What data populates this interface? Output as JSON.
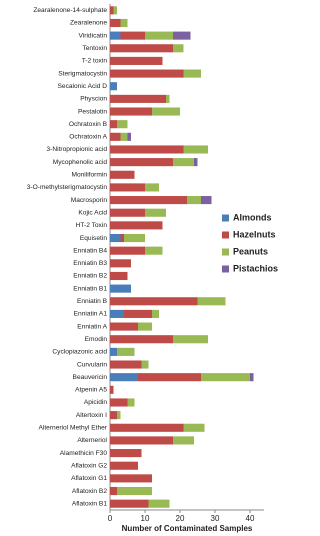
{
  "chart_data": {
    "type": "bar",
    "orientation": "horizontal",
    "stacked": true,
    "x_label": "Number of Contaminated Samples",
    "categories": [
      "Zearalenone-14-sulphate",
      "Zearalenone",
      "Viridicatin",
      "Tentoxin",
      "T-2 toxin",
      "Sterigmatocystin",
      "Secalonic Acid D",
      "Physcion",
      "Pestalotin",
      "Ochratoxin B",
      "Ochratoxin A",
      "3-Nitropropionic acid",
      "Mycophenolic acid",
      "Moniliformin",
      "3-O-methylsterigmatocystin",
      "Macrosporin",
      "Kojic Acid",
      "HT-2 Toxin",
      "Equisetin",
      "Enniatin B4",
      "Enniatin B3",
      "Enniatin B2",
      "Enniatin B1",
      "Enniatin B",
      "Enniatin A1",
      "Enniatin A",
      "Emodin",
      "Cyclopiazonic acid",
      "Curvularin",
      "Beauvericin",
      "Atpenin A5",
      "Apicidin",
      "Altertoxin I",
      "Alterneriol Methyl Ether",
      "Alterneriol",
      "Alamethicin F30",
      "Aflatoxin G2",
      "Aflatoxin G1",
      "Aflatoxin B2",
      "Aflatoxin B1"
    ],
    "series": [
      {
        "name": "Almonds",
        "color": "#4a7ebb",
        "values": [
          0,
          0,
          3,
          0,
          0,
          0,
          2,
          0,
          0,
          0,
          0,
          0,
          0,
          0,
          0,
          0,
          0,
          0,
          3,
          0,
          0,
          0,
          6,
          0,
          4,
          0,
          0,
          2,
          0,
          8,
          0,
          0,
          0,
          0,
          0,
          0,
          0,
          0,
          0,
          0
        ]
      },
      {
        "name": "Hazelnuts",
        "color": "#be4b48",
        "values": [
          1,
          3,
          7,
          18,
          15,
          21,
          0,
          16,
          12,
          2,
          3,
          21,
          18,
          7,
          10,
          22,
          10,
          15,
          1,
          10,
          6,
          5,
          0,
          25,
          8,
          8,
          18,
          0,
          9,
          18,
          1,
          5,
          2,
          21,
          18,
          9,
          8,
          12,
          2,
          11
        ]
      },
      {
        "name": "Peanuts",
        "color": "#98b954",
        "values": [
          1,
          2,
          8,
          3,
          0,
          5,
          0,
          1,
          8,
          3,
          2,
          7,
          6,
          0,
          4,
          4,
          6,
          0,
          6,
          5,
          0,
          0,
          0,
          8,
          2,
          4,
          10,
          5,
          2,
          14,
          0,
          2,
          1,
          6,
          6,
          0,
          0,
          0,
          10,
          6
        ]
      },
      {
        "name": "Pistachios",
        "color": "#7d60a0",
        "values": [
          0,
          0,
          5,
          0,
          0,
          0,
          0,
          0,
          0,
          0,
          1,
          0,
          1,
          0,
          0,
          3,
          0,
          0,
          0,
          0,
          0,
          0,
          0,
          0,
          0,
          0,
          0,
          0,
          0,
          1,
          0,
          0,
          0,
          0,
          0,
          0,
          0,
          0,
          0,
          0
        ]
      }
    ],
    "xlim": [
      0,
      44
    ],
    "xticks": [
      0,
      10,
      20,
      30,
      40
    ],
    "legend": "right"
  }
}
